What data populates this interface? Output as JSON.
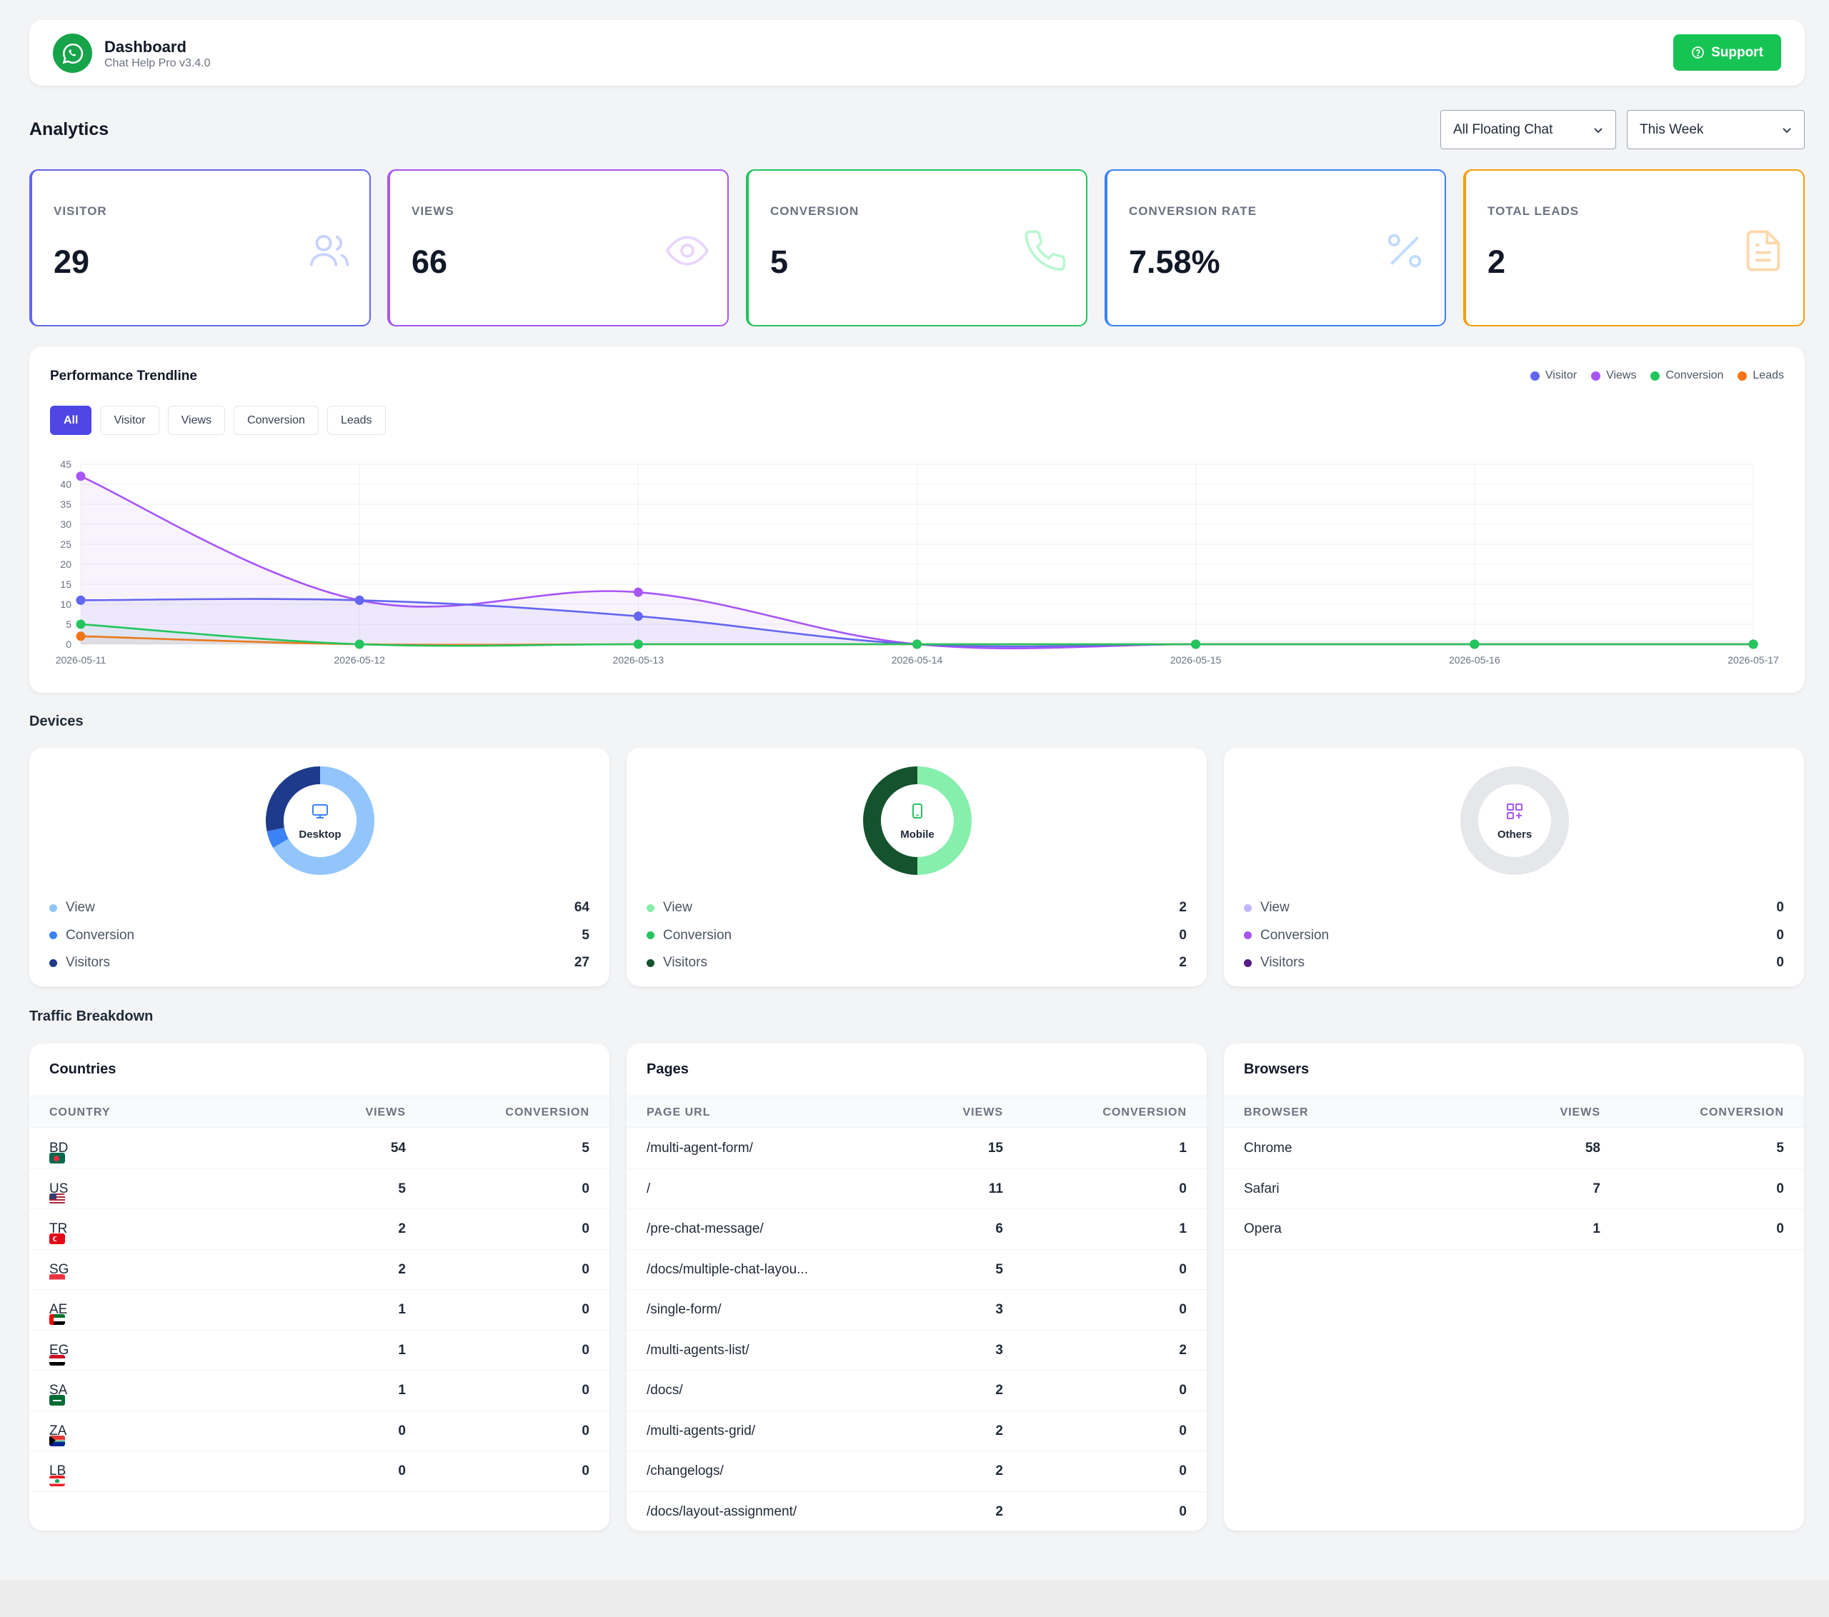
{
  "header": {
    "title": "Dashboard",
    "subtitle": "Chat Help Pro v3.4.0",
    "support_label": "Support"
  },
  "analytics": {
    "title": "Analytics",
    "filter_chat": "All Floating Chat",
    "filter_period": "This Week",
    "stats": [
      {
        "label": "VISITOR",
        "value": "29",
        "color": "#6366f1",
        "icon": "users-icon"
      },
      {
        "label": "VIEWS",
        "value": "66",
        "color": "#a855f7",
        "icon": "eye-icon"
      },
      {
        "label": "CONVERSION",
        "value": "5",
        "color": "#22c55e",
        "icon": "phone-icon"
      },
      {
        "label": "CONVERSION RATE",
        "value": "7.58%",
        "color": "#3b82f6",
        "icon": "percent-icon"
      },
      {
        "label": "TOTAL LEADS",
        "value": "2",
        "color": "#f59e0b",
        "icon": "document-icon"
      }
    ]
  },
  "trend": {
    "title": "Performance Trendline",
    "filters": [
      "All",
      "Visitor",
      "Views",
      "Conversion",
      "Leads"
    ],
    "active_filter": "All"
  },
  "chart_data": {
    "type": "line",
    "title": "Performance Trendline",
    "x": [
      "2026-05-11",
      "2026-05-12",
      "2026-05-13",
      "2026-05-14",
      "2026-05-15",
      "2026-05-16",
      "2026-05-17"
    ],
    "ylim": [
      0,
      45
    ],
    "yticks": [
      0,
      5,
      10,
      15,
      20,
      25,
      30,
      35,
      40,
      45
    ],
    "grid": true,
    "legend": "top-right",
    "series": [
      {
        "name": "Visitor",
        "color": "#6366f1",
        "values": [
          11,
          11,
          7,
          0,
          0,
          0,
          0
        ]
      },
      {
        "name": "Views",
        "color": "#a855f7",
        "values": [
          42,
          11,
          13,
          0,
          0,
          0,
          0
        ]
      },
      {
        "name": "Conversion",
        "color": "#22c55e",
        "values": [
          5,
          0,
          0,
          0,
          0,
          0,
          0
        ]
      },
      {
        "name": "Leads",
        "color": "#f97316",
        "values": [
          2,
          0,
          0,
          0,
          0,
          0,
          0
        ]
      }
    ]
  },
  "devices": {
    "title": "Devices",
    "cards": [
      {
        "name": "Desktop",
        "icon": "monitor-icon",
        "icon_color": "#3b82f6",
        "ring": [
          {
            "value": 64,
            "color": "#93c5fd"
          },
          {
            "value": 5,
            "color": "#3b82f6"
          },
          {
            "value": 27,
            "color": "#1e3a8a"
          }
        ],
        "rows": [
          {
            "label": "View",
            "value": "64",
            "color": "#93c5fd"
          },
          {
            "label": "Conversion",
            "value": "5",
            "color": "#3b82f6"
          },
          {
            "label": "Visitors",
            "value": "27",
            "color": "#1e3a8a"
          }
        ]
      },
      {
        "name": "Mobile",
        "icon": "smartphone-icon",
        "icon_color": "#22c55e",
        "ring": [
          {
            "value": 2,
            "color": "#86efac"
          },
          {
            "value": 0,
            "color": "#22c55e"
          },
          {
            "value": 2,
            "color": "#14532d"
          }
        ],
        "rows": [
          {
            "label": "View",
            "value": "2",
            "color": "#86efac"
          },
          {
            "label": "Conversion",
            "value": "0",
            "color": "#22c55e"
          },
          {
            "label": "Visitors",
            "value": "2",
            "color": "#14532d"
          }
        ]
      },
      {
        "name": "Others",
        "icon": "grid-plus-icon",
        "icon_color": "#a855f7",
        "ring": [],
        "rows": [
          {
            "label": "View",
            "value": "0",
            "color": "#c4b5fd"
          },
          {
            "label": "Conversion",
            "value": "0",
            "color": "#a855f7"
          },
          {
            "label": "Visitors",
            "value": "0",
            "color": "#581c87"
          }
        ]
      }
    ]
  },
  "traffic": {
    "title": "Traffic Breakdown",
    "countries": {
      "title": "Countries",
      "headers": [
        "COUNTRY",
        "VIEWS",
        "CONVERSION"
      ],
      "rows": [
        [
          "BD",
          "54",
          "5"
        ],
        [
          "US",
          "5",
          "0"
        ],
        [
          "TR",
          "2",
          "0"
        ],
        [
          "SG",
          "2",
          "0"
        ],
        [
          "AE",
          "1",
          "0"
        ],
        [
          "EG",
          "1",
          "0"
        ],
        [
          "SA",
          "1",
          "0"
        ],
        [
          "ZA",
          "0",
          "0"
        ],
        [
          "LB",
          "0",
          "0"
        ]
      ]
    },
    "pages": {
      "title": "Pages",
      "headers": [
        "PAGE URL",
        "VIEWS",
        "CONVERSION"
      ],
      "rows": [
        [
          "/multi-agent-form/",
          "15",
          "1"
        ],
        [
          "/",
          "11",
          "0"
        ],
        [
          "/pre-chat-message/",
          "6",
          "1"
        ],
        [
          "/docs/multiple-chat-layou...",
          "5",
          "0"
        ],
        [
          "/single-form/",
          "3",
          "0"
        ],
        [
          "/multi-agents-list/",
          "3",
          "2"
        ],
        [
          "/docs/",
          "2",
          "0"
        ],
        [
          "/multi-agents-grid/",
          "2",
          "0"
        ],
        [
          "/changelogs/",
          "2",
          "0"
        ],
        [
          "/docs/layout-assignment/",
          "2",
          "0"
        ]
      ]
    },
    "browsers": {
      "title": "Browsers",
      "headers": [
        "BROWSER",
        "VIEWS",
        "CONVERSION"
      ],
      "rows": [
        [
          "Chrome",
          "58",
          "5"
        ],
        [
          "Safari",
          "7",
          "0"
        ],
        [
          "Opera",
          "1",
          "0"
        ]
      ]
    }
  }
}
